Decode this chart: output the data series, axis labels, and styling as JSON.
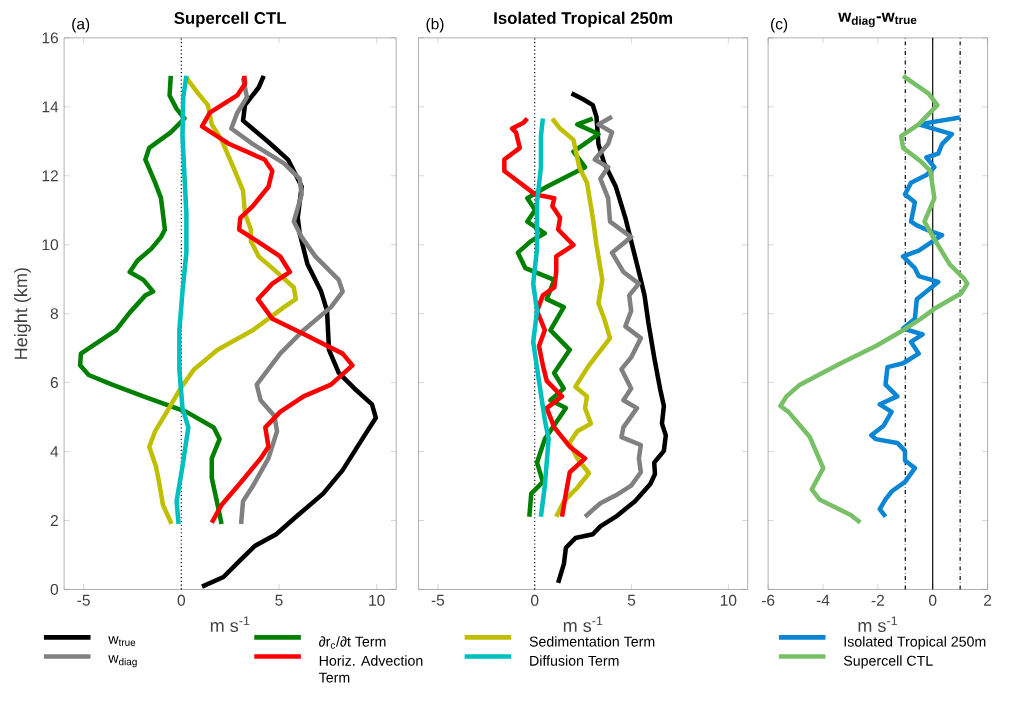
{
  "chart_data": [
    {
      "type": "line",
      "title": "Supercell CTL",
      "xlabel": "m s$^{-1}$",
      "ylabel": "Height (km)",
      "annotations": [
        "(a)"
      ],
      "xlim": [
        -6,
        11
      ],
      "xticks": [
        -5,
        0,
        5,
        10
      ],
      "ylim": [
        0,
        16
      ],
      "yticks": [
        0,
        2,
        4,
        6,
        8,
        10,
        12,
        14,
        16
      ],
      "legend": "bottom",
      "ref_lines": [
        {
          "axis": "x",
          "value": 0,
          "color": "#000000",
          "line_style": "dotted"
        }
      ],
      "series": [
        {
          "name": "w$_{true}$",
          "color": "#000000",
          "x": [
            1.06,
            2.16,
            3.06,
            3.76,
            4.86,
            5.86,
            7.26,
            8.26,
            9.26,
            9.96,
            9.76,
            8.86,
            8.06,
            7.56,
            7.46,
            7.16,
            6.46,
            6.06,
            5.96,
            6.16,
            5.46,
            4.46,
            3.16,
            3.26,
            3.96,
            4.22
          ],
          "values": [
            0.08,
            0.36,
            0.87,
            1.26,
            1.6,
            2.1,
            2.78,
            3.46,
            4.36,
            4.98,
            5.37,
            5.83,
            6.28,
            6.95,
            8.08,
            8.64,
            9.43,
            10.33,
            10.78,
            11.69,
            12.47,
            12.98,
            13.6,
            14.05,
            14.56,
            14.9
          ]
        },
        {
          "name": "∂r$_{c}$/∂t Term",
          "color": "#008000",
          "x": [
            2.06,
            1.86,
            1.56,
            1.56,
            1.96,
            1.66,
            0.26,
            -1.94,
            -3.54,
            -4.74,
            -5.18,
            -5.14,
            -4.24,
            -3.34,
            -2.64,
            -1.84,
            -1.44,
            -1.94,
            -2.64,
            -2.24,
            -1.54,
            -1.04,
            -0.84,
            -1.04,
            -1.34,
            -1.84,
            -1.64,
            -0.54,
            0.16,
            -0.24,
            -0.6,
            -0.54
          ],
          "values": [
            1.9,
            2.45,
            3.23,
            3.8,
            4.36,
            4.7,
            5.15,
            5.6,
            5.94,
            6.22,
            6.5,
            6.84,
            7.18,
            7.52,
            8.03,
            8.53,
            8.64,
            8.98,
            9.21,
            9.54,
            9.88,
            10.22,
            10.44,
            11.35,
            11.8,
            12.47,
            12.81,
            13.26,
            13.66,
            13.94,
            14.33,
            14.9
          ]
        },
        {
          "name": "Sedimentation Term",
          "color": "#bfbf00",
          "x": [
            -0.5,
            -0.94,
            -1.14,
            -1.3,
            -1.64,
            -1.34,
            -0.74,
            -0.04,
            0.66,
            1.86,
            3.66,
            5.26,
            5.86,
            5.76,
            4.66,
            3.96,
            3.56,
            3.56,
            3.26,
            3.16,
            2.66,
            2.06,
            1.56,
            1.36,
            0.86,
            0.26
          ],
          "values": [
            1.9,
            2.45,
            3.12,
            3.57,
            4.14,
            4.59,
            5.15,
            5.83,
            6.39,
            6.95,
            7.52,
            8.19,
            8.42,
            8.76,
            9.32,
            9.66,
            10.11,
            10.44,
            10.9,
            11.57,
            12.25,
            13.04,
            13.49,
            14.05,
            14.39,
            14.84
          ]
        },
        {
          "name": "w$_{diag}$",
          "color": "#808080",
          "x": [
            3.06,
            3.16,
            3.66,
            4.46,
            4.9,
            4.76,
            4.06,
            3.86,
            4.46,
            5.06,
            6.26,
            7.66,
            8.26,
            8.06,
            6.86,
            6.16,
            5.76,
            6.16,
            6.06,
            5.26,
            3.66,
            2.56,
            2.86,
            3.36,
            3.16
          ],
          "values": [
            1.9,
            2.56,
            3.0,
            3.8,
            4.59,
            5.04,
            5.49,
            5.94,
            6.39,
            6.84,
            7.52,
            8.19,
            8.64,
            8.98,
            9.66,
            10.22,
            10.67,
            11.46,
            11.91,
            12.36,
            12.92,
            13.37,
            13.82,
            14.28,
            14.84
          ]
        },
        {
          "name": "Horiz. Advection Term",
          "color": "#ff0000",
          "x": [
            1.56,
            2.06,
            3.16,
            4.06,
            4.46,
            4.3,
            5.06,
            6.26,
            7.66,
            8.76,
            8.26,
            6.26,
            4.66,
            3.92,
            4.66,
            5.56,
            5.06,
            3.86,
            2.96,
            3.02,
            3.66,
            4.46,
            4.66,
            4.26,
            2.46,
            1.06,
            1.46,
            2.86,
            3.26,
            3.22
          ],
          "values": [
            1.94,
            2.45,
            3.18,
            3.8,
            4.14,
            4.7,
            5.15,
            5.6,
            5.94,
            6.5,
            6.84,
            7.41,
            7.85,
            8.42,
            8.87,
            9.21,
            9.66,
            10.11,
            10.44,
            10.78,
            11.12,
            11.68,
            12.14,
            12.47,
            12.92,
            13.43,
            13.83,
            14.33,
            14.67,
            14.9
          ]
        },
        {
          "name": "Diffusion Term",
          "color": "#00bfbf",
          "x": [
            -0.14,
            -0.24,
            0.06,
            0.36,
            0.06,
            -0.1,
            -0.1,
            0.06,
            0.26,
            0.26,
            0.16,
            0.06,
            0.1,
            0.26
          ],
          "values": [
            1.9,
            2.56,
            3.57,
            4.7,
            5.26,
            6.39,
            7.52,
            8.64,
            9.77,
            10.9,
            12.02,
            13.15,
            14.28,
            14.9
          ]
        }
      ]
    },
    {
      "type": "line",
      "title": "Isolated Tropical 250m",
      "xlabel": "m s$^{-1}$",
      "annotations": [
        "(b)"
      ],
      "xlim": [
        -6,
        11
      ],
      "xticks": [
        -5,
        0,
        5,
        10
      ],
      "ylim": [
        0,
        16
      ],
      "yticks": [
        0,
        2,
        4,
        6,
        8,
        10,
        12,
        14,
        16
      ],
      "tick_labels": "x",
      "ref_lines": [
        {
          "axis": "x",
          "value": 0,
          "color": "#000000",
          "line_style": "dotted"
        }
      ],
      "series": [
        {
          "color": "#000000",
          "x": [
            1.21,
            1.51,
            1.61,
            2.1,
            3.0,
            3.39,
            4.19,
            5.18,
            5.97,
            6.21,
            6.17,
            6.67,
            6.77,
            6.57,
            6.67,
            6.47,
            6.17,
            5.87,
            5.67,
            5.38,
            5.08,
            4.68,
            4.19,
            3.59,
            3.29,
            3.19,
            3.0,
            2.5,
            1.9
          ],
          "values": [
            0.19,
            0.75,
            1.21,
            1.49,
            1.6,
            1.83,
            2.11,
            2.56,
            3.06,
            3.35,
            3.68,
            4.02,
            4.47,
            4.81,
            5.32,
            5.83,
            6.73,
            7.74,
            8.53,
            9.21,
            9.88,
            10.78,
            11.68,
            12.36,
            12.92,
            13.71,
            14.05,
            14.22,
            14.39
          ]
        },
        {
          "color": "#008000",
          "x": [
            -0.28,
            -0.18,
            0.42,
            0.12,
            0.52,
            1.61,
            0.81,
            1.5,
            1.0,
            1.81,
            0.81,
            1.5,
            0.62,
            1.01,
            -0.48,
            -0.87,
            -0.18,
            0.52,
            -0.38,
            0.02,
            -0.38,
            0.62,
            2.6,
            2.0,
            3.29,
            2.2,
            3.0
          ],
          "values": [
            2.11,
            2.78,
            3.12,
            3.68,
            4.36,
            5.26,
            5.49,
            5.83,
            6.28,
            6.95,
            7.52,
            8.19,
            8.42,
            8.98,
            9.32,
            9.77,
            10.11,
            10.33,
            10.67,
            11.01,
            11.35,
            11.68,
            12.25,
            12.7,
            13.21,
            13.49,
            13.66
          ]
        },
        {
          "color": "#bfbf00",
          "x": [
            1.11,
            1.51,
            2.2,
            2.8,
            2.2,
            1.79,
            2.2,
            2.9,
            2.6,
            2.7,
            2.1,
            2.8,
            3.89,
            3.59,
            3.29,
            3.49,
            3.19,
            3.0,
            2.7,
            2.3,
            2.0,
            1.31,
            0.91
          ],
          "values": [
            2.11,
            2.56,
            2.95,
            3.37,
            3.8,
            4.25,
            4.59,
            4.81,
            5.26,
            5.6,
            5.88,
            6.5,
            7.29,
            7.85,
            8.3,
            8.98,
            9.99,
            10.78,
            11.8,
            12.25,
            13.04,
            13.37,
            13.66
          ]
        },
        {
          "color": "#808080",
          "x": [
            2.6,
            3.39,
            4.19,
            4.98,
            5.48,
            5.38,
            5.48,
            4.48,
            4.58,
            5.28,
            4.58,
            4.98,
            4.48,
            4.98,
            5.48,
            4.68,
            4.98,
            4.88,
            5.38,
            4.58,
            3.99,
            4.98,
            3.89,
            3.79,
            3.39,
            3.79,
            3.1,
            3.79,
            3.99,
            3.29,
            3.99
          ],
          "values": [
            2.11,
            2.5,
            2.73,
            3.01,
            3.4,
            3.8,
            4.19,
            4.42,
            4.7,
            5.26,
            5.49,
            5.83,
            6.39,
            6.73,
            7.29,
            7.63,
            8.08,
            8.53,
            8.87,
            9.21,
            9.77,
            10.22,
            10.67,
            11.35,
            11.91,
            12.25,
            12.47,
            12.92,
            13.26,
            13.49,
            13.71
          ]
        },
        {
          "color": "#ff0000",
          "x": [
            1.41,
            1.61,
            1.81,
            2.6,
            1.81,
            1.01,
            0.62,
            1.41,
            0.62,
            0.42,
            0.22,
            0.52,
            0.12,
            0.42,
            1.01,
            1.11,
            1.11,
            2.0,
            1.21,
            1.31,
            0.91,
            1.01,
            0.02,
            -1.57,
            -1.57,
            -0.77,
            -0.97,
            -1.17,
            -0.58,
            -0.38
          ],
          "values": [
            2.11,
            2.78,
            3.4,
            3.8,
            4.14,
            4.7,
            5.26,
            5.6,
            6.05,
            6.5,
            7.06,
            7.52,
            8.08,
            8.53,
            8.76,
            9.21,
            9.66,
            9.99,
            10.44,
            10.78,
            11.12,
            11.35,
            11.46,
            12.14,
            12.47,
            12.81,
            13.26,
            13.37,
            13.54,
            13.66
          ]
        },
        {
          "color": "#00bfbf",
          "x": [
            0.32,
            0.52,
            0.72,
            0.52,
            0.22,
            -0.08,
            0.12,
            -0.08,
            0.12,
            0.12,
            0.32,
            0.32,
            0.42
          ],
          "values": [
            2.11,
            3.01,
            4.36,
            4.92,
            6.05,
            7.18,
            8.08,
            8.87,
            9.88,
            11.23,
            12.25,
            13.15,
            13.66
          ]
        }
      ]
    },
    {
      "type": "line",
      "title": "w$_{diag}$-w$_{true}$",
      "xlabel": "m s$^{-1}$",
      "annotations": [
        "(c)"
      ],
      "xlim": [
        -6,
        2
      ],
      "xticks": [
        -6,
        -4,
        -2,
        0,
        2
      ],
      "ylim": [
        0,
        16
      ],
      "yticks": [
        0,
        2,
        4,
        6,
        8,
        10,
        12,
        14,
        16
      ],
      "tick_labels": "x",
      "legend": "bottom",
      "ref_lines": [
        {
          "axis": "x",
          "value": -1,
          "color": "#000000",
          "line_style": "dashdot"
        },
        {
          "axis": "x",
          "value": 0,
          "color": "#000000",
          "line_style": "solid"
        },
        {
          "axis": "x",
          "value": 1,
          "color": "#000000",
          "line_style": "dashdot"
        }
      ],
      "series": [
        {
          "name": "Isolated Tropical 250m",
          "color": "#0a86d4",
          "x": [
            -1.72,
            -1.93,
            -1.72,
            -1.5,
            -1.01,
            -0.65,
            -1.01,
            -1.01,
            -1.29,
            -2.07,
            -2.24,
            -1.79,
            -1.5,
            -1.93,
            -1.29,
            -1.72,
            -1.65,
            -1.08,
            -0.51,
            -0.79,
            -0.37,
            -1.08,
            -0.65,
            -0.58,
            0.2,
            -0.51,
            -0.65,
            -1.08,
            -0.51,
            0.34,
            -0.09,
            -0.58,
            -0.79,
            -0.65,
            -1.01,
            -0.79,
            -0.23,
            0.06,
            -0.23,
            0.2,
            0.34,
            0.7,
            -0.51,
            0.99
          ],
          "values": [
            2.11,
            2.33,
            2.61,
            2.84,
            3.12,
            3.52,
            3.74,
            4.02,
            4.25,
            4.36,
            4.47,
            4.75,
            5.15,
            5.37,
            5.6,
            5.94,
            6.45,
            6.56,
            6.84,
            7.18,
            7.4,
            7.57,
            7.85,
            8.42,
            8.92,
            9.09,
            9.32,
            9.66,
            9.83,
            10.28,
            10.39,
            10.56,
            10.67,
            11.23,
            11.46,
            11.8,
            12.02,
            12.25,
            12.53,
            12.64,
            12.92,
            13.21,
            13.49,
            13.69
          ]
        },
        {
          "name": "Supercell CTL",
          "color": "#77c066",
          "x": [
            -2.64,
            -2.99,
            -4.13,
            -4.41,
            -3.99,
            -4.48,
            -5.26,
            -5.55,
            -5.33,
            -4.84,
            -3.35,
            -2.07,
            -1.08,
            -0.44,
            0.06,
            1.04,
            1.26,
            1.12,
            0.62,
            0.06,
            -0.3,
            0.06,
            -0.09,
            -0.44,
            -1.08,
            -1.15,
            -0.51,
            0.17,
            -0.16,
            -1.08
          ],
          "values": [
            1.94,
            2.16,
            2.61,
            2.9,
            3.52,
            4.42,
            5.15,
            5.32,
            5.6,
            5.94,
            6.56,
            7.06,
            7.52,
            7.85,
            8.14,
            8.59,
            8.87,
            9.04,
            9.43,
            10.16,
            10.67,
            11.35,
            12.14,
            12.42,
            12.81,
            13.15,
            13.49,
            14.05,
            14.39,
            14.9
          ]
        }
      ]
    }
  ]
}
